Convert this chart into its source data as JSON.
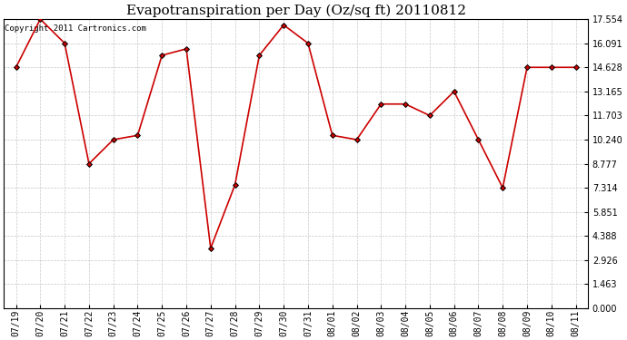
{
  "title": "Evapotranspiration per Day (Oz/sq ft) 20110812",
  "copyright_text": "Copyright 2011 Cartronics.com",
  "x_labels": [
    "07/19",
    "07/20",
    "07/21",
    "07/22",
    "07/23",
    "07/24",
    "07/25",
    "07/26",
    "07/27",
    "07/28",
    "07/29",
    "07/30",
    "07/31",
    "08/01",
    "08/02",
    "08/03",
    "08/04",
    "08/05",
    "08/06",
    "08/07",
    "08/08",
    "08/09",
    "08/10",
    "08/11"
  ],
  "y_values": [
    14.628,
    17.554,
    16.091,
    8.777,
    10.24,
    10.5,
    15.36,
    15.75,
    3.65,
    7.5,
    15.36,
    17.2,
    16.091,
    10.5,
    10.24,
    12.4,
    12.4,
    11.703,
    13.165,
    10.24,
    7.314,
    14.628,
    14.628,
    14.628
  ],
  "line_color": "#cc0000",
  "marker": "D",
  "marker_size": 3,
  "marker_color": "#000000",
  "bg_color": "#ffffff",
  "grid_color": "#c8c8c8",
  "ylim": [
    0,
    17.554
  ],
  "yticks": [
    0.0,
    1.463,
    2.926,
    4.388,
    5.851,
    7.314,
    8.777,
    10.24,
    11.703,
    13.165,
    14.628,
    16.091,
    17.554
  ],
  "title_fontsize": 11,
  "tick_fontsize": 7,
  "copyright_fontsize": 6.5,
  "figwidth": 6.9,
  "figheight": 3.75,
  "dpi": 100
}
